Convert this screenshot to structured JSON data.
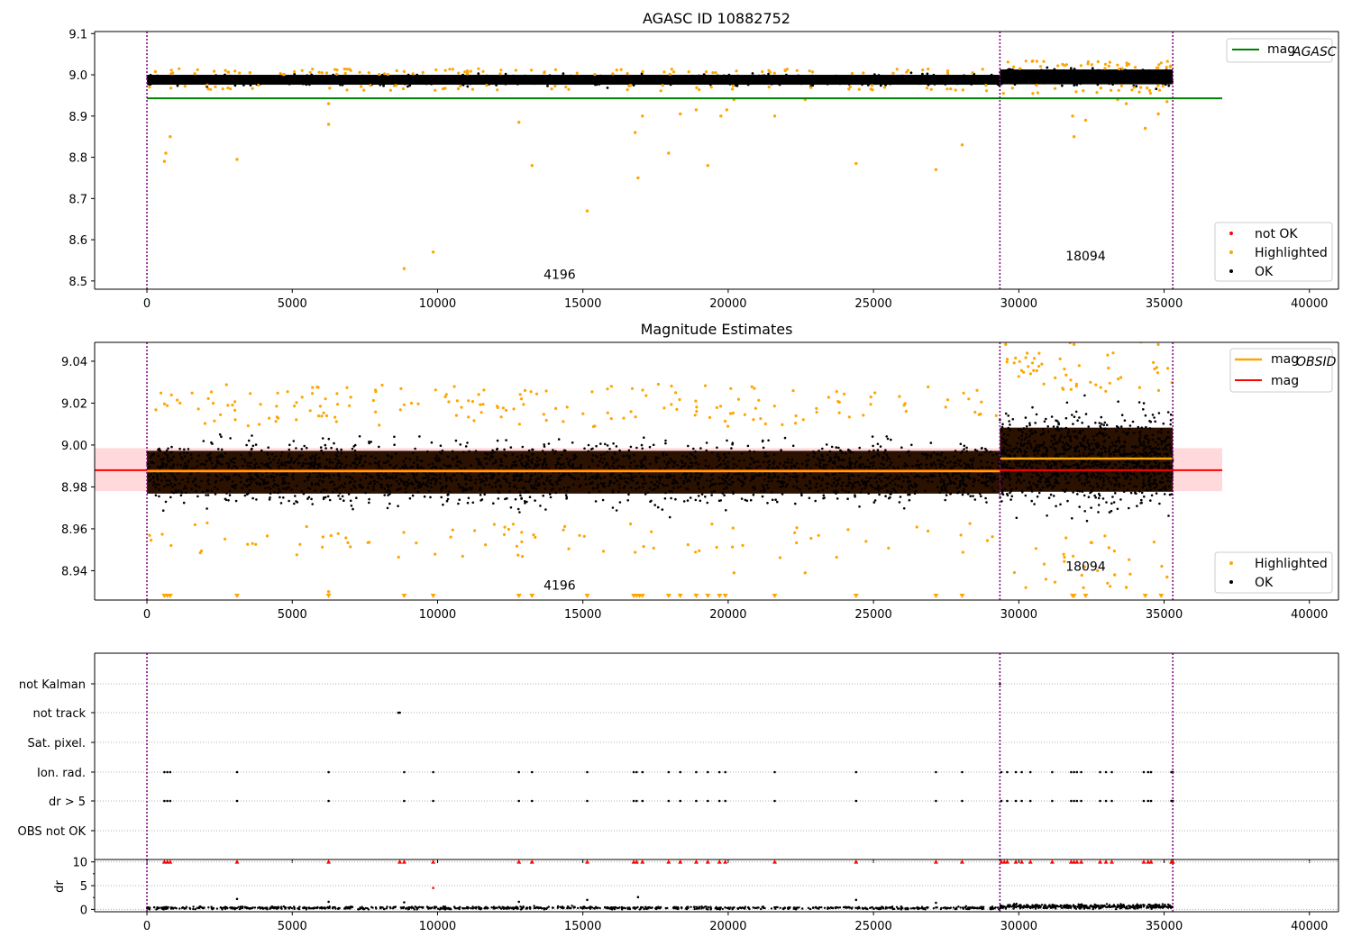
{
  "chart_data": [
    {
      "type": "scatter",
      "title": "AGASC ID 10882752",
      "xlabel": "",
      "ylabel": "",
      "xlim": [
        -1800,
        41000
      ],
      "ylim": [
        8.48,
        9.105
      ],
      "x_ticks": [
        0,
        5000,
        10000,
        15000,
        20000,
        25000,
        30000,
        35000,
        40000
      ],
      "x_tick_labels": [
        "0",
        "5000",
        "10000",
        "15000",
        "20000",
        "25000",
        "30000",
        "35000",
        "40000"
      ],
      "y_ticks": [
        8.5,
        8.6,
        8.7,
        8.8,
        8.9,
        9.0,
        9.1
      ],
      "y_tick_labels": [
        "8.5",
        "8.6",
        "8.7",
        "8.8",
        "8.9",
        "9.0",
        "9.1"
      ],
      "grid": false,
      "obs_boundaries": [
        0,
        29350,
        35300
      ],
      "ok_band": [
        {
          "x": [
            0,
            29350
          ],
          "y_center": 8.988,
          "spread": 0.012
        },
        {
          "x": [
            29350,
            35300
          ],
          "y_center": 8.995,
          "spread": 0.018
        }
      ],
      "lines": [
        {
          "name": "mag_AGASC",
          "y": 8.943,
          "x": [
            0,
            37000
          ],
          "color": "#008000"
        }
      ],
      "highlighted_outliers": [
        {
          "x": 600,
          "y": 8.79
        },
        {
          "x": 650,
          "y": 8.81
        },
        {
          "x": 800,
          "y": 8.85
        },
        {
          "x": 3100,
          "y": 8.795
        },
        {
          "x": 6250,
          "y": 8.88
        },
        {
          "x": 6250,
          "y": 8.93
        },
        {
          "x": 8850,
          "y": 8.53
        },
        {
          "x": 9850,
          "y": 8.57
        },
        {
          "x": 12800,
          "y": 8.885
        },
        {
          "x": 13250,
          "y": 8.78
        },
        {
          "x": 15150,
          "y": 8.67
        },
        {
          "x": 16800,
          "y": 8.86
        },
        {
          "x": 16900,
          "y": 8.75
        },
        {
          "x": 17050,
          "y": 8.9
        },
        {
          "x": 17950,
          "y": 8.81
        },
        {
          "x": 18350,
          "y": 8.905
        },
        {
          "x": 18900,
          "y": 8.915
        },
        {
          "x": 19300,
          "y": 8.78
        },
        {
          "x": 19750,
          "y": 8.9
        },
        {
          "x": 19950,
          "y": 8.915
        },
        {
          "x": 20200,
          "y": 8.94
        },
        {
          "x": 21600,
          "y": 8.9
        },
        {
          "x": 22650,
          "y": 8.94
        },
        {
          "x": 24400,
          "y": 8.785
        },
        {
          "x": 27150,
          "y": 8.77
        },
        {
          "x": 28050,
          "y": 8.83
        },
        {
          "x": 31850,
          "y": 8.9
        },
        {
          "x": 31900,
          "y": 8.85
        },
        {
          "x": 32300,
          "y": 8.89
        },
        {
          "x": 33400,
          "y": 8.94
        },
        {
          "x": 33700,
          "y": 8.93
        },
        {
          "x": 34350,
          "y": 8.87
        },
        {
          "x": 34800,
          "y": 8.905
        },
        {
          "x": 35100,
          "y": 8.935
        }
      ],
      "annotations": [
        {
          "text": "4196",
          "x": 14200,
          "y": 8.505
        },
        {
          "text": "18094",
          "x": 32300,
          "y": 8.55
        }
      ],
      "legend": {
        "placement": "upper right / lower right",
        "entries_top": [
          "mag_AGASC"
        ],
        "entries_bottom": [
          "not OK",
          "Highlighted",
          "OK"
        ]
      }
    },
    {
      "type": "scatter",
      "title": "Magnitude Estimates",
      "xlabel": "",
      "ylabel": "",
      "xlim": [
        -1800,
        41000
      ],
      "ylim": [
        8.926,
        9.049
      ],
      "x_ticks": [
        0,
        5000,
        10000,
        15000,
        20000,
        25000,
        30000,
        35000,
        40000
      ],
      "x_tick_labels": [
        "0",
        "5000",
        "10000",
        "15000",
        "20000",
        "25000",
        "30000",
        "35000",
        "40000"
      ],
      "y_ticks": [
        8.94,
        8.96,
        8.98,
        9.0,
        9.02,
        9.04
      ],
      "y_tick_labels": [
        "8.94",
        "8.96",
        "8.98",
        "9.00",
        "9.02",
        "9.04"
      ],
      "grid": false,
      "obs_boundaries": [
        0,
        29350,
        35300
      ],
      "ok_band": [
        {
          "x": [
            0,
            29350
          ],
          "y_center": 8.987,
          "spread": 0.012
        },
        {
          "x": [
            29350,
            35300
          ],
          "y_center": 8.993,
          "spread": 0.018
        }
      ],
      "lines": [
        {
          "name": "mag_OBSID",
          "segments": [
            {
              "x": [
                0,
                29350
              ],
              "y": 8.9875
            },
            {
              "x": [
                29350,
                35300
              ],
              "y": 8.9935
            }
          ],
          "color": "#ffa500"
        },
        {
          "name": "mag",
          "y": 8.988,
          "x": [
            -1800,
            37000
          ],
          "color": "#ff0000",
          "band": [
            8.978,
            8.9985
          ]
        }
      ],
      "lower_limit_markers_x": [
        600,
        700,
        800,
        3100,
        6250,
        8850,
        9850,
        12800,
        13250,
        15150,
        16750,
        16850,
        16950,
        17050,
        17950,
        18350,
        18900,
        19300,
        19700,
        19900,
        21600,
        24400,
        27150,
        28050,
        31850,
        31900,
        32300,
        34350,
        34900
      ],
      "highlighted_outliers": [
        {
          "x": 6250,
          "y": 8.93
        },
        {
          "x": 20200,
          "y": 8.939
        },
        {
          "x": 22650,
          "y": 8.939
        },
        {
          "x": 33100,
          "y": 8.951
        },
        {
          "x": 33300,
          "y": 8.938
        },
        {
          "x": 33700,
          "y": 8.932
        },
        {
          "x": 35100,
          "y": 8.937
        },
        {
          "x": 31900,
          "y": 9.048
        },
        {
          "x": 29550,
          "y": 9.048
        }
      ],
      "annotations": [
        {
          "text": "4196",
          "x": 14200,
          "y": 8.931
        },
        {
          "text": "18094",
          "x": 32300,
          "y": 8.94
        }
      ],
      "legend": {
        "placement": "upper right / lower right",
        "entries_top": [
          "mag_OBSID",
          "mag"
        ],
        "entries_bottom": [
          "Highlighted",
          "OK"
        ]
      }
    },
    {
      "type": "scatter",
      "title": "",
      "xlabel": "",
      "ylabel": "",
      "xlim": [
        -1800,
        41000
      ],
      "x_ticks": [
        0,
        5000,
        10000,
        15000,
        20000,
        25000,
        30000,
        35000,
        40000
      ],
      "x_tick_labels": [
        "0",
        "5000",
        "10000",
        "15000",
        "20000",
        "25000",
        "30000",
        "35000",
        "40000"
      ],
      "grid": true,
      "obs_boundaries": [
        0,
        29350,
        35300
      ],
      "flag_rows": [
        "not Kalman",
        "not track",
        "Sat. pixel.",
        "Ion. rad.",
        "dr > 5",
        "OBS not OK"
      ],
      "flags": {
        "not Kalman": [
          29350
        ],
        "not track": [
          8650,
          8700
        ],
        "Sat. pixel.": [],
        "Ion. rad.": [
          600,
          700,
          800,
          3100,
          6250,
          8850,
          9850,
          12800,
          13250,
          15150,
          16750,
          16850,
          17050,
          17950,
          18350,
          18900,
          19300,
          19700,
          19900,
          21600,
          24400,
          27150,
          28050,
          29400,
          29600,
          29900,
          30100,
          30400,
          31150,
          31800,
          31900,
          32000,
          32150,
          32800,
          33000,
          33200,
          34300,
          34450,
          34550,
          35250,
          35300
        ],
        "dr > 5": [
          600,
          700,
          800,
          3100,
          6250,
          8850,
          9850,
          12800,
          13250,
          15150,
          16750,
          16850,
          17050,
          17950,
          18350,
          18900,
          19300,
          19700,
          19900,
          21600,
          24400,
          27150,
          28050,
          29400,
          29600,
          29900,
          30100,
          30400,
          31150,
          31800,
          31900,
          32000,
          32150,
          32800,
          33000,
          33200,
          34300,
          34450,
          34550,
          35250,
          35300
        ],
        "OBS not OK": []
      }
    },
    {
      "type": "scatter",
      "title": "",
      "xlabel": "",
      "ylabel": "dr",
      "xlim": [
        -1800,
        41000
      ],
      "ylim": [
        -0.5,
        10.5
      ],
      "x_ticks": [
        0,
        5000,
        10000,
        15000,
        20000,
        25000,
        30000,
        35000,
        40000
      ],
      "x_tick_labels": [
        "0",
        "5000",
        "10000",
        "15000",
        "20000",
        "25000",
        "30000",
        "35000",
        "40000"
      ],
      "y_ticks": [
        0,
        5,
        10
      ],
      "y_tick_labels": [
        "0",
        "5",
        "10"
      ],
      "grid": true,
      "obs_boundaries": [
        0,
        29350,
        35300
      ],
      "baseline": [
        {
          "x": [
            0,
            29350
          ],
          "y_center": 0.3,
          "spread": 0.25
        },
        {
          "x": [
            29350,
            35300
          ],
          "y_center": 0.6,
          "spread": 0.35
        }
      ],
      "capped_at_10_x": [
        600,
        700,
        800,
        3100,
        6250,
        8700,
        8850,
        9850,
        12800,
        13250,
        15150,
        16750,
        16850,
        17050,
        17950,
        18350,
        18900,
        19300,
        19700,
        19900,
        21600,
        24400,
        27150,
        28050,
        29400,
        29500,
        29600,
        29900,
        30100,
        30400,
        31150,
        31800,
        31900,
        32000,
        32150,
        32800,
        33000,
        33200,
        34300,
        34450,
        34550,
        35250,
        35300
      ],
      "extra_points": [
        {
          "x": 3100,
          "y": 2.2,
          "color": "#000000"
        },
        {
          "x": 6250,
          "y": 1.6,
          "color": "#000000"
        },
        {
          "x": 9850,
          "y": 4.5,
          "color": "#ff0000"
        },
        {
          "x": 8850,
          "y": 1.5,
          "color": "#000000"
        },
        {
          "x": 12800,
          "y": 1.6,
          "color": "#000000"
        },
        {
          "x": 15150,
          "y": 2.0,
          "color": "#000000"
        },
        {
          "x": 16900,
          "y": 2.6,
          "color": "#000000"
        },
        {
          "x": 24400,
          "y": 2.0,
          "color": "#000000"
        },
        {
          "x": 27150,
          "y": 1.4,
          "color": "#000000"
        }
      ]
    }
  ],
  "colors": {
    "ok": "#000000",
    "highlighted": "#ffa500",
    "not_ok": "#ff0000",
    "obs_boundary": "#800080",
    "agasc_line": "#008000",
    "mag_line": "#ff0000",
    "mag_band": "#ffd9dc",
    "mag_obsid_line": "#ffa500",
    "band_fill": "#2b1100"
  },
  "legend_labels": {
    "p1_top": {
      "main": "mag",
      "sub": "AGASC"
    },
    "p1_bottom": [
      "not OK",
      "Highlighted",
      "OK"
    ],
    "p2_top": [
      {
        "main": "mag",
        "sub": "OBSID"
      },
      {
        "main": "mag",
        "sub": ""
      }
    ],
    "p2_bottom": [
      "Highlighted",
      "OK"
    ]
  }
}
